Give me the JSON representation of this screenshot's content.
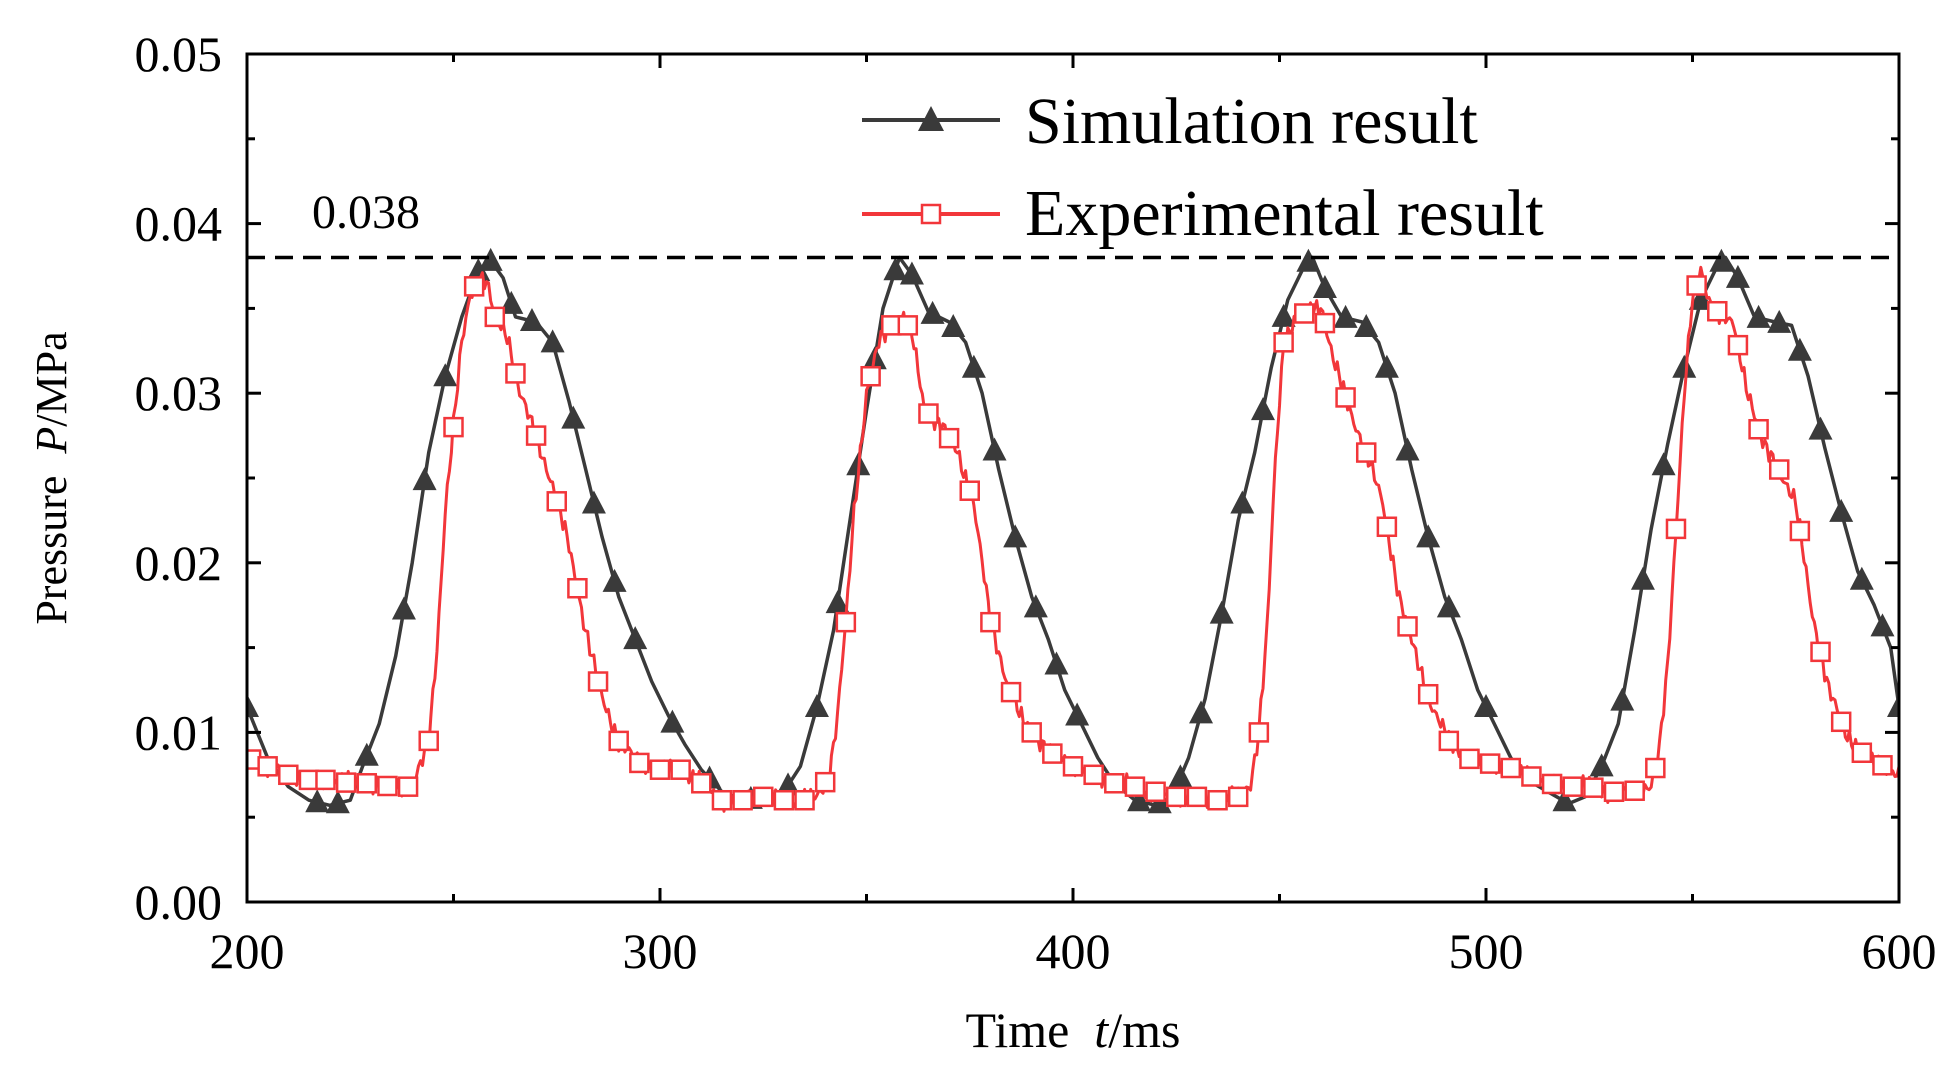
{
  "chart_data": {
    "type": "line",
    "title": "",
    "xlabel": {
      "prefix": "Time  ",
      "var": "t",
      "unit": "/ms"
    },
    "ylabel": {
      "prefix": "Pressure  ",
      "var": "P",
      "unit": "/MPa"
    },
    "xlim": [
      200,
      600
    ],
    "ylim": [
      0,
      0.05
    ],
    "xticks": [
      200,
      300,
      400,
      500,
      600
    ],
    "xtick_labels": [
      "200",
      "300",
      "400",
      "500",
      "600"
    ],
    "yticks": [
      0,
      0.01,
      0.02,
      0.03,
      0.04,
      0.05
    ],
    "ytick_labels": [
      "0.00",
      "0.01",
      "0.02",
      "0.03",
      "0.04",
      "0.05"
    ],
    "grid": false,
    "legend_position": "top-right",
    "reference_line": {
      "y": 0.038,
      "label": "0.038",
      "style": "dashed"
    },
    "series": [
      {
        "name": "Simulation result",
        "color": "#3a3a3a",
        "marker": "triangle",
        "points": [
          [
            200,
            0.0115
          ],
          [
            205,
            0.0085
          ],
          [
            210,
            0.0068
          ],
          [
            215,
            0.006
          ],
          [
            220,
            0.0057
          ],
          [
            225,
            0.006
          ],
          [
            228,
            0.008
          ],
          [
            232,
            0.0105
          ],
          [
            236,
            0.0145
          ],
          [
            240,
            0.02
          ],
          [
            244,
            0.0265
          ],
          [
            248,
            0.031
          ],
          [
            252,
            0.0345
          ],
          [
            256,
            0.0372
          ],
          [
            259,
            0.0378
          ],
          [
            262,
            0.0368
          ],
          [
            265,
            0.0345
          ],
          [
            270,
            0.0342
          ],
          [
            274,
            0.033
          ],
          [
            278,
            0.0295
          ],
          [
            282,
            0.0255
          ],
          [
            286,
            0.0215
          ],
          [
            290,
            0.018
          ],
          [
            294,
            0.0155
          ],
          [
            298,
            0.013
          ],
          [
            302,
            0.011
          ],
          [
            306,
            0.0093
          ],
          [
            310,
            0.0078
          ],
          [
            315,
            0.0065
          ],
          [
            320,
            0.006
          ],
          [
            325,
            0.0062
          ],
          [
            330,
            0.0065
          ],
          [
            334,
            0.008
          ],
          [
            338,
            0.0115
          ],
          [
            342,
            0.016
          ],
          [
            346,
            0.0225
          ],
          [
            350,
            0.029
          ],
          [
            354,
            0.035
          ],
          [
            358,
            0.038
          ],
          [
            361,
            0.037
          ],
          [
            365,
            0.0348
          ],
          [
            370,
            0.0342
          ],
          [
            374,
            0.033
          ],
          [
            378,
            0.03
          ],
          [
            382,
            0.0255
          ],
          [
            386,
            0.0215
          ],
          [
            390,
            0.018
          ],
          [
            394,
            0.0155
          ],
          [
            398,
            0.0125
          ],
          [
            402,
            0.0105
          ],
          [
            406,
            0.0085
          ],
          [
            410,
            0.007
          ],
          [
            415,
            0.006
          ],
          [
            420,
            0.0057
          ],
          [
            424,
            0.0062
          ],
          [
            428,
            0.0085
          ],
          [
            432,
            0.012
          ],
          [
            436,
            0.017
          ],
          [
            440,
            0.0225
          ],
          [
            444,
            0.0265
          ],
          [
            448,
            0.0315
          ],
          [
            452,
            0.0355
          ],
          [
            456,
            0.0375
          ],
          [
            458,
            0.038
          ],
          [
            461,
            0.0362
          ],
          [
            465,
            0.0345
          ],
          [
            470,
            0.0342
          ],
          [
            474,
            0.033
          ],
          [
            478,
            0.03
          ],
          [
            482,
            0.0255
          ],
          [
            486,
            0.0215
          ],
          [
            490,
            0.018
          ],
          [
            494,
            0.0155
          ],
          [
            498,
            0.0125
          ],
          [
            502,
            0.0105
          ],
          [
            506,
            0.0085
          ],
          [
            510,
            0.0072
          ],
          [
            515,
            0.0065
          ],
          [
            520,
            0.0058
          ],
          [
            524,
            0.0062
          ],
          [
            528,
            0.008
          ],
          [
            532,
            0.0105
          ],
          [
            536,
            0.016
          ],
          [
            540,
            0.022
          ],
          [
            544,
            0.027
          ],
          [
            548,
            0.0315
          ],
          [
            552,
            0.0355
          ],
          [
            556,
            0.0375
          ],
          [
            558,
            0.038
          ],
          [
            561,
            0.0368
          ],
          [
            565,
            0.0345
          ],
          [
            570,
            0.0342
          ],
          [
            574,
            0.034
          ],
          [
            578,
            0.031
          ],
          [
            582,
            0.0268
          ],
          [
            586,
            0.023
          ],
          [
            590,
            0.0195
          ],
          [
            594,
            0.0175
          ],
          [
            598,
            0.015
          ],
          [
            600,
            0.0115
          ]
        ],
        "marker_x": [
          200,
          217,
          222,
          229,
          238,
          243,
          248,
          256,
          259,
          264,
          269,
          274,
          279,
          284,
          289,
          294,
          303,
          312,
          322,
          331,
          338,
          343,
          348,
          352,
          357,
          361,
          366,
          371,
          376,
          381,
          386,
          391,
          396,
          401,
          416,
          421,
          426,
          431,
          436,
          441,
          446,
          451,
          457,
          461,
          466,
          471,
          476,
          481,
          486,
          491,
          500,
          519,
          528,
          533,
          538,
          543,
          548,
          552,
          557,
          561,
          566,
          571,
          576,
          581,
          586,
          591,
          596,
          600
        ]
      },
      {
        "name": "Experimental result",
        "color": "#f2363a",
        "marker": "square-open",
        "points": [
          [
            200,
            0.0085
          ],
          [
            205,
            0.008
          ],
          [
            210,
            0.0075
          ],
          [
            215,
            0.0072
          ],
          [
            220,
            0.0072
          ],
          [
            225,
            0.007
          ],
          [
            230,
            0.007
          ],
          [
            235,
            0.0068
          ],
          [
            240,
            0.0068
          ],
          [
            242,
            0.008
          ],
          [
            244,
            0.0095
          ],
          [
            246,
            0.015
          ],
          [
            248,
            0.023
          ],
          [
            250,
            0.028
          ],
          [
            252,
            0.033
          ],
          [
            254,
            0.0358
          ],
          [
            256,
            0.0368
          ],
          [
            258,
            0.0365
          ],
          [
            260,
            0.0345
          ],
          [
            263,
            0.0335
          ],
          [
            266,
            0.03
          ],
          [
            270,
            0.0275
          ],
          [
            274,
            0.0245
          ],
          [
            278,
            0.021
          ],
          [
            282,
            0.016
          ],
          [
            286,
            0.012
          ],
          [
            290,
            0.0095
          ],
          [
            295,
            0.0082
          ],
          [
            300,
            0.0078
          ],
          [
            305,
            0.0078
          ],
          [
            310,
            0.007
          ],
          [
            315,
            0.006
          ],
          [
            320,
            0.006
          ],
          [
            325,
            0.0062
          ],
          [
            330,
            0.006
          ],
          [
            335,
            0.006
          ],
          [
            338,
            0.0062
          ],
          [
            341,
            0.0075
          ],
          [
            343,
            0.011
          ],
          [
            345,
            0.0165
          ],
          [
            347,
            0.023
          ],
          [
            350,
            0.03
          ],
          [
            353,
            0.033
          ],
          [
            356,
            0.034
          ],
          [
            359,
            0.0345
          ],
          [
            361,
            0.0335
          ],
          [
            364,
            0.029
          ],
          [
            368,
            0.0282
          ],
          [
            372,
            0.0265
          ],
          [
            376,
            0.0235
          ],
          [
            380,
            0.0165
          ],
          [
            384,
            0.013
          ],
          [
            388,
            0.0105
          ],
          [
            392,
            0.0095
          ],
          [
            396,
            0.0085
          ],
          [
            400,
            0.008
          ],
          [
            405,
            0.0075
          ],
          [
            410,
            0.007
          ],
          [
            415,
            0.0068
          ],
          [
            420,
            0.0065
          ],
          [
            425,
            0.0062
          ],
          [
            430,
            0.0062
          ],
          [
            435,
            0.006
          ],
          [
            440,
            0.0062
          ],
          [
            443,
            0.007
          ],
          [
            445,
            0.01
          ],
          [
            447,
            0.016
          ],
          [
            449,
            0.026
          ],
          [
            451,
            0.033
          ],
          [
            454,
            0.0345
          ],
          [
            457,
            0.0348
          ],
          [
            460,
            0.0352
          ],
          [
            463,
            0.032
          ],
          [
            467,
            0.029
          ],
          [
            471,
            0.0265
          ],
          [
            475,
            0.0235
          ],
          [
            479,
            0.018
          ],
          [
            483,
            0.0145
          ],
          [
            487,
            0.0115
          ],
          [
            491,
            0.0095
          ],
          [
            495,
            0.0085
          ],
          [
            500,
            0.0082
          ],
          [
            505,
            0.008
          ],
          [
            510,
            0.0075
          ],
          [
            515,
            0.007
          ],
          [
            520,
            0.0068
          ],
          [
            525,
            0.0068
          ],
          [
            530,
            0.0065
          ],
          [
            535,
            0.0065
          ],
          [
            540,
            0.0068
          ],
          [
            542,
            0.009
          ],
          [
            544,
            0.014
          ],
          [
            546,
            0.022
          ],
          [
            548,
            0.03
          ],
          [
            550,
            0.0355
          ],
          [
            552,
            0.0372
          ],
          [
            554,
            0.0355
          ],
          [
            557,
            0.0345
          ],
          [
            560,
            0.034
          ],
          [
            563,
            0.0305
          ],
          [
            567,
            0.027
          ],
          [
            571,
            0.0255
          ],
          [
            575,
            0.0235
          ],
          [
            579,
            0.017
          ],
          [
            583,
            0.0125
          ],
          [
            587,
            0.01
          ],
          [
            591,
            0.0088
          ],
          [
            595,
            0.0082
          ],
          [
            600,
            0.0075
          ]
        ],
        "marker_x": [
          201,
          205,
          210,
          215,
          219,
          224,
          229,
          234,
          239,
          244,
          250,
          255,
          260,
          265,
          270,
          275,
          280,
          285,
          290,
          295,
          300,
          305,
          310,
          315,
          320,
          325,
          330,
          335,
          340,
          345,
          351,
          356,
          360,
          365,
          370,
          375,
          380,
          385,
          390,
          395,
          400,
          405,
          410,
          415,
          420,
          425,
          430,
          435,
          440,
          445,
          451,
          456,
          461,
          466,
          471,
          476,
          481,
          486,
          491,
          496,
          501,
          506,
          511,
          516,
          521,
          526,
          531,
          536,
          541,
          546,
          551,
          556,
          561,
          566,
          571,
          576,
          581,
          586,
          591,
          596
        ]
      }
    ]
  }
}
